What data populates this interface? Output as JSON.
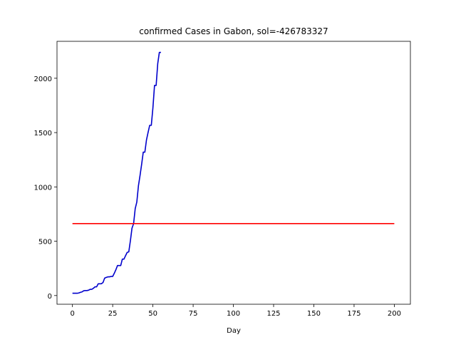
{
  "chart_data": {
    "type": "line",
    "title": "confirmed Cases in Gabon, sol=-426783327",
    "xlabel": "Day",
    "ylabel": "",
    "xlim": [
      -9.6,
      210.0
    ],
    "ylim": [
      -80,
      2340
    ],
    "xticks": [
      0,
      25,
      50,
      75,
      100,
      125,
      150,
      175,
      200
    ],
    "yticks": [
      0,
      500,
      1000,
      1500,
      2000
    ],
    "grid": false,
    "series": [
      {
        "color": "#0000cc",
        "x": [
          0,
          1,
          2,
          3,
          4,
          5,
          6,
          7,
          8,
          9,
          10,
          11,
          12,
          13,
          14,
          15,
          16,
          17,
          18,
          19,
          20,
          21,
          22,
          23,
          24,
          25,
          26,
          27,
          28,
          29,
          30,
          31,
          32,
          33,
          34,
          35,
          36,
          37,
          38,
          39,
          40,
          41,
          42,
          43,
          44,
          45,
          46,
          47,
          48,
          49,
          50,
          51,
          52,
          53,
          54,
          55
        ],
        "y": [
          21,
          21,
          21,
          21,
          24,
          30,
          34,
          44,
          46,
          46,
          49,
          57,
          57,
          67,
          80,
          80,
          108,
          108,
          109,
          120,
          160,
          167,
          172,
          172,
          176,
          176,
          205,
          238,
          276,
          276,
          276,
          335,
          335,
          367,
          397,
          402,
          504,
          620,
          662,
          800,
          861,
          1010,
          1105,
          1209,
          1320,
          1320,
          1432,
          1502,
          1567,
          1567,
          1728,
          1934,
          1934,
          2135,
          2238,
          2238
        ]
      },
      {
        "color": "#ff0000",
        "x": [
          0,
          200
        ],
        "y": [
          662,
          662
        ]
      }
    ]
  }
}
